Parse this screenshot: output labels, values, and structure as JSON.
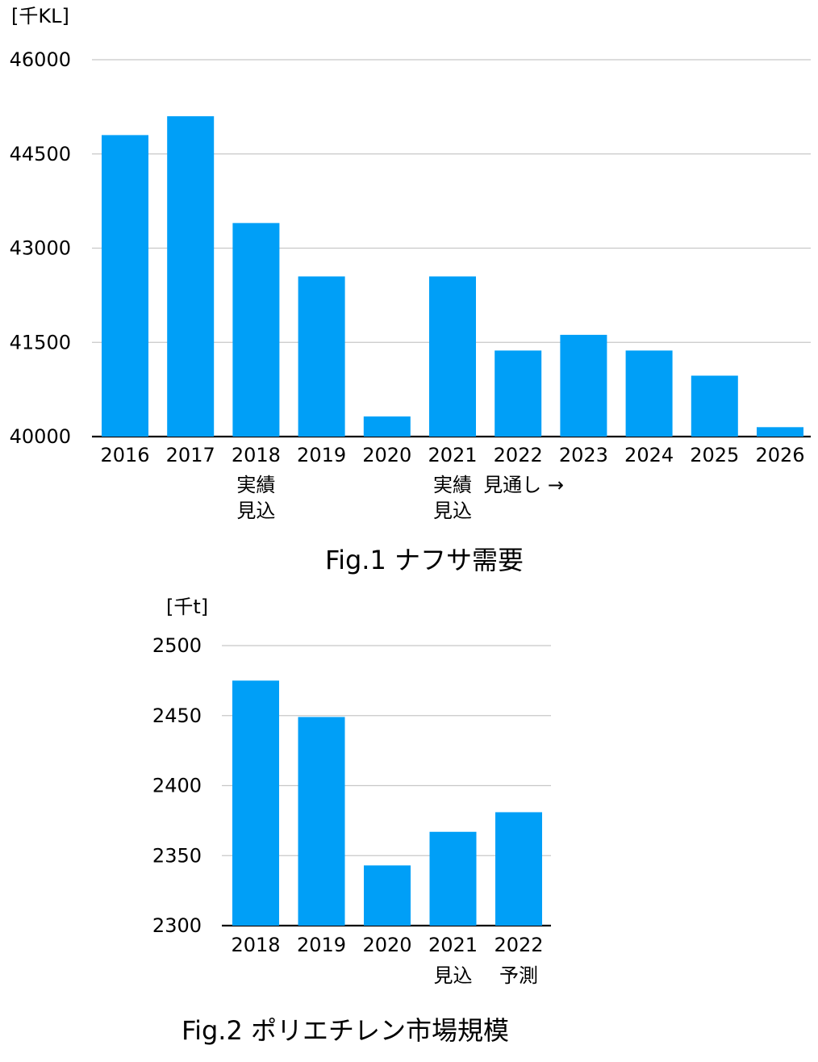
{
  "chart_data": [
    {
      "type": "bar",
      "caption": "Fig.1 ナフサ需要",
      "unit": "[千KL]",
      "categories": [
        "2016",
        "2017",
        "2018",
        "2019",
        "2020",
        "2021",
        "2022",
        "2023",
        "2024",
        "2025",
        "2026"
      ],
      "category_notes": [
        {
          "index": 2,
          "lines": [
            "実績",
            "見込"
          ]
        },
        {
          "index": 5,
          "lines": [
            "実績",
            "見込"
          ]
        },
        {
          "index": 6,
          "lines": [
            "見通し →"
          ]
        }
      ],
      "values": [
        44800,
        45100,
        43400,
        42550,
        40320,
        42550,
        41370,
        41620,
        41370,
        40970,
        40150
      ],
      "ylim": [
        40000,
        46000
      ],
      "yticks": [
        "40000",
        "41500",
        "43000",
        "44500",
        "46000"
      ],
      "bar_color": "#009ff7",
      "grid": true
    },
    {
      "type": "bar",
      "caption": "Fig.2 ポリエチレン市場規模",
      "unit": "[千t]",
      "categories": [
        "2018",
        "2019",
        "2020",
        "2021",
        "2022"
      ],
      "category_notes": [
        {
          "index": 3,
          "lines": [
            "見込"
          ]
        },
        {
          "index": 4,
          "lines": [
            "予測"
          ]
        }
      ],
      "values": [
        2475,
        2449,
        2343,
        2367,
        2381
      ],
      "ylim": [
        2300,
        2500
      ],
      "yticks": [
        "2300",
        "2350",
        "2400",
        "2450",
        "2500"
      ],
      "bar_color": "#009ff7",
      "grid": true
    }
  ]
}
